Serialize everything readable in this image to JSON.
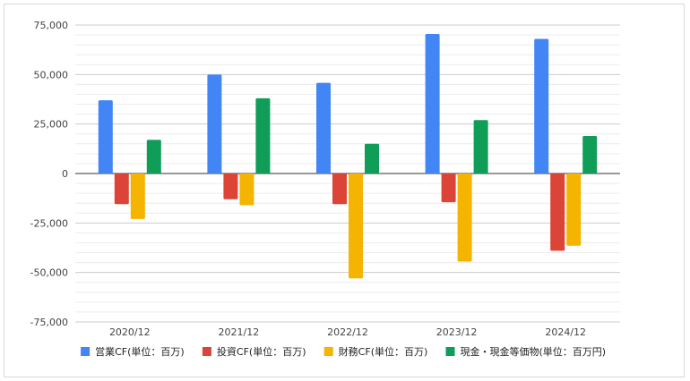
{
  "chart_data": {
    "type": "bar",
    "categories": [
      "2020/12",
      "2021/12",
      "2022/12",
      "2023/12",
      "2024/12"
    ],
    "series": [
      {
        "name": "営業CF(単位：百万)",
        "color": "#4285f4",
        "values": [
          37000,
          50000,
          45800,
          70500,
          68000
        ]
      },
      {
        "name": "投資CF(単位：百万)",
        "color": "#db4437",
        "values": [
          -15500,
          -13000,
          -15500,
          -14500,
          -39000
        ]
      },
      {
        "name": "財務CF(単位：百万)",
        "color": "#f4b400",
        "values": [
          -23000,
          -16000,
          -53000,
          -44500,
          -36500
        ]
      },
      {
        "name": "現金・現金等価物(単位：百万円)",
        "color": "#0f9d58",
        "values": [
          17000,
          38000,
          15000,
          27000,
          19000
        ]
      }
    ],
    "yticks": [
      "75,000",
      "50,000",
      "25,000",
      "0",
      "-25,000",
      "-50,000",
      "-75,000"
    ],
    "ylim": [
      -75000,
      75000
    ],
    "grid": true,
    "legend": "bottom"
  }
}
